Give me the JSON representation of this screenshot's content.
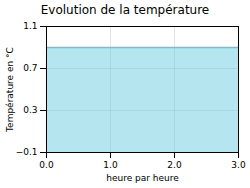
{
  "chart_data": {
    "type": "area",
    "title": "Evolution de la température",
    "xlabel": "heure par heure",
    "ylabel": "Température en °C",
    "x": [
      0,
      3
    ],
    "values": [
      0.9,
      0.9
    ],
    "color": "#5bc8dc",
    "xlim": [
      0,
      3
    ],
    "ylim": [
      -0.1,
      1.1
    ],
    "xticks": [
      0,
      1,
      2,
      3
    ],
    "yticks": [
      -0.1,
      0.3,
      0.7,
      1.1
    ],
    "grid": true
  }
}
